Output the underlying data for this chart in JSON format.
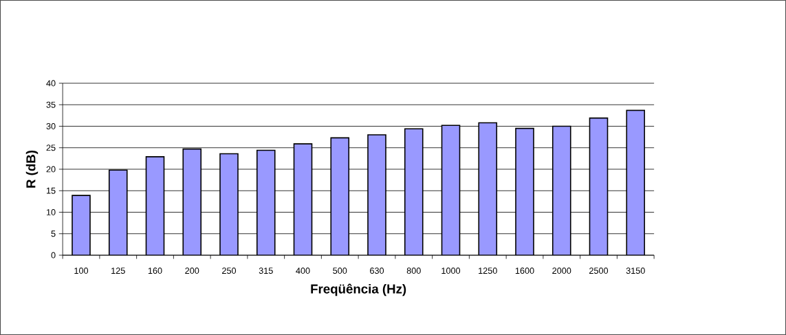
{
  "chart_data": {
    "type": "bar",
    "xlabel": "Freqüência (Hz)",
    "ylabel": "R (dB)",
    "categories": [
      "100",
      "125",
      "160",
      "200",
      "250",
      "315",
      "400",
      "500",
      "630",
      "800",
      "1000",
      "1250",
      "1600",
      "2000",
      "2500",
      "3150"
    ],
    "values": [
      13.9,
      19.8,
      22.9,
      24.7,
      23.6,
      24.4,
      25.9,
      27.3,
      28.0,
      29.4,
      30.2,
      30.8,
      29.5,
      30.0,
      31.9,
      33.7
    ],
    "color": "#9999ff",
    "ylim": [
      0,
      40
    ],
    "yticks": [
      0,
      5,
      10,
      15,
      20,
      25,
      30,
      35,
      40
    ],
    "grid": "y"
  }
}
